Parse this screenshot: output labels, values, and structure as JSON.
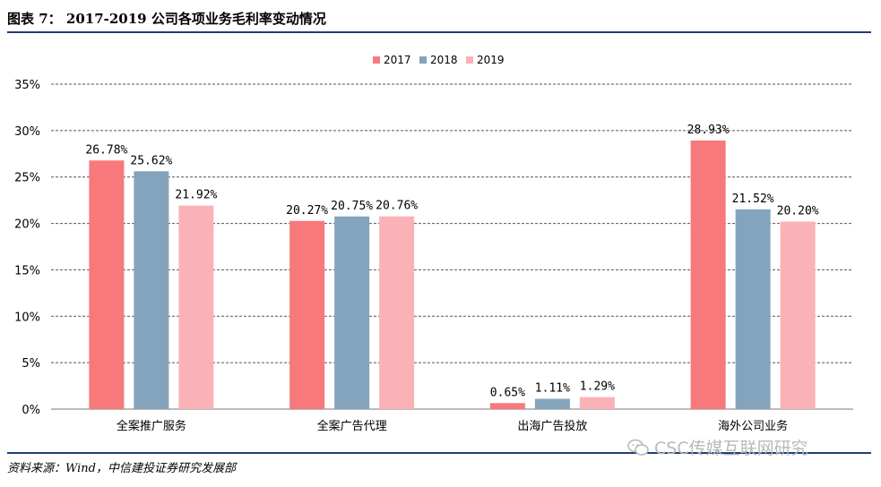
{
  "title": "图表 7：  2017-2019 公司各项业务毛利率变动情况",
  "source": "资料来源：Wind，中信建投证券研究发展部",
  "watermark": "CSC传媒互联网研究",
  "colors": {
    "2017": "#f7797c",
    "2018": "#84a4bd",
    "2019": "#fbb2b6",
    "grid": "#555555",
    "rule": "#1f3f73"
  },
  "chart_data": {
    "type": "bar",
    "categories": [
      "全案推广服务",
      "全案广告代理",
      "出海广告投放",
      "海外公司业务"
    ],
    "series": [
      {
        "name": "2017",
        "values": [
          26.78,
          20.27,
          0.65,
          28.93
        ]
      },
      {
        "name": "2018",
        "values": [
          25.62,
          20.75,
          1.11,
          21.52
        ]
      },
      {
        "name": "2019",
        "values": [
          21.92,
          20.76,
          1.29,
          20.2
        ]
      }
    ],
    "data_labels": [
      [
        "26.78%",
        "20.27%",
        "0.65%",
        "28.93%"
      ],
      [
        "25.62%",
        "20.75%",
        "1.11%",
        "21.52%"
      ],
      [
        "21.92%",
        "20.76%",
        "1.29%",
        "20.20%"
      ]
    ],
    "yticks": [
      "0%",
      "5%",
      "10%",
      "15%",
      "20%",
      "25%",
      "30%",
      "35%"
    ],
    "ylim": [
      0,
      35
    ],
    "grid": true,
    "legend": "top-center"
  }
}
